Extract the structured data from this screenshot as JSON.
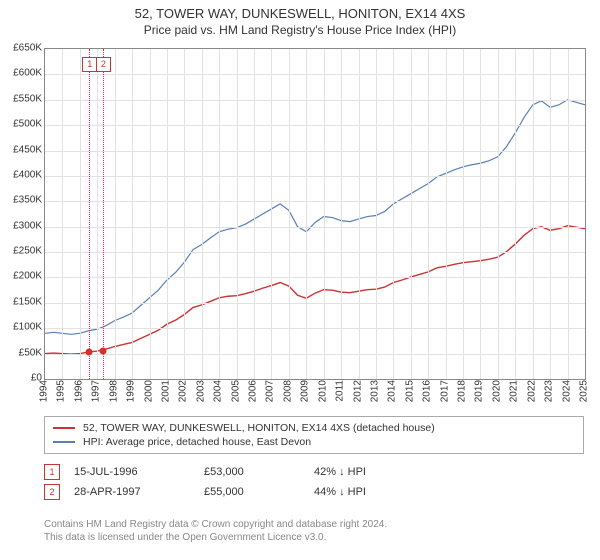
{
  "title": {
    "main": "52, TOWER WAY, DUNKESWELL, HONITON, EX14 4XS",
    "sub": "Price paid vs. HM Land Registry's House Price Index (HPI)"
  },
  "chart": {
    "type": "line",
    "ylim": [
      0,
      650000
    ],
    "ytick_step": 50000,
    "ytick_prefix": "£",
    "ytick_suffix": "K",
    "ytick_divisor": 1000,
    "xlim": [
      1994,
      2025
    ],
    "xtick_step": 1,
    "grid_color": "#e2e2e2",
    "background": "#ffffff",
    "series": [
      {
        "name": "HPI: Average price, detached house, East Devon",
        "color": "#5b7fb5",
        "width": 1.2,
        "points": [
          [
            1994,
            90000
          ],
          [
            1994.5,
            92000
          ],
          [
            1995,
            90000
          ],
          [
            1995.5,
            88000
          ],
          [
            1996,
            90000
          ],
          [
            1996.5,
            95000
          ],
          [
            1997,
            98000
          ],
          [
            1997.5,
            105000
          ],
          [
            1998,
            115000
          ],
          [
            1998.5,
            122000
          ],
          [
            1999,
            130000
          ],
          [
            1999.5,
            145000
          ],
          [
            2000,
            160000
          ],
          [
            2000.5,
            175000
          ],
          [
            2001,
            195000
          ],
          [
            2001.5,
            210000
          ],
          [
            2002,
            230000
          ],
          [
            2002.5,
            255000
          ],
          [
            2003,
            265000
          ],
          [
            2003.5,
            278000
          ],
          [
            2004,
            290000
          ],
          [
            2004.5,
            295000
          ],
          [
            2005,
            298000
          ],
          [
            2005.5,
            305000
          ],
          [
            2006,
            315000
          ],
          [
            2006.5,
            325000
          ],
          [
            2007,
            335000
          ],
          [
            2007.5,
            345000
          ],
          [
            2008,
            332000
          ],
          [
            2008.5,
            300000
          ],
          [
            2009,
            290000
          ],
          [
            2009.5,
            308000
          ],
          [
            2010,
            320000
          ],
          [
            2010.5,
            318000
          ],
          [
            2011,
            312000
          ],
          [
            2011.5,
            310000
          ],
          [
            2012,
            315000
          ],
          [
            2012.5,
            320000
          ],
          [
            2013,
            322000
          ],
          [
            2013.5,
            330000
          ],
          [
            2014,
            345000
          ],
          [
            2014.5,
            355000
          ],
          [
            2015,
            365000
          ],
          [
            2015.5,
            375000
          ],
          [
            2016,
            385000
          ],
          [
            2016.5,
            398000
          ],
          [
            2017,
            405000
          ],
          [
            2017.5,
            412000
          ],
          [
            2018,
            418000
          ],
          [
            2018.5,
            422000
          ],
          [
            2019,
            425000
          ],
          [
            2019.5,
            430000
          ],
          [
            2020,
            438000
          ],
          [
            2020.5,
            458000
          ],
          [
            2021,
            485000
          ],
          [
            2021.5,
            515000
          ],
          [
            2022,
            540000
          ],
          [
            2022.5,
            548000
          ],
          [
            2023,
            535000
          ],
          [
            2023.5,
            540000
          ],
          [
            2024,
            550000
          ],
          [
            2024.5,
            545000
          ],
          [
            2025,
            540000
          ]
        ]
      },
      {
        "name": "52, TOWER WAY, DUNKESWELL, HONITON, EX14 4XS (detached house)",
        "color": "#cc3333",
        "width": 1.4,
        "points": [
          [
            1994,
            50000
          ],
          [
            1994.5,
            51000
          ],
          [
            1995,
            50000
          ],
          [
            1995.5,
            49000
          ],
          [
            1996,
            50000
          ],
          [
            1996.5,
            53000
          ],
          [
            1997,
            55000
          ],
          [
            1997.5,
            59000
          ],
          [
            1998,
            64000
          ],
          [
            1998.5,
            68000
          ],
          [
            1999,
            72000
          ],
          [
            1999.5,
            80000
          ],
          [
            2000,
            88000
          ],
          [
            2000.5,
            96000
          ],
          [
            2001,
            108000
          ],
          [
            2001.5,
            116000
          ],
          [
            2002,
            127000
          ],
          [
            2002.5,
            141000
          ],
          [
            2003,
            146000
          ],
          [
            2003.5,
            153000
          ],
          [
            2004,
            160000
          ],
          [
            2004.5,
            163000
          ],
          [
            2005,
            164000
          ],
          [
            2005.5,
            168000
          ],
          [
            2006,
            173000
          ],
          [
            2006.5,
            179000
          ],
          [
            2007,
            184000
          ],
          [
            2007.5,
            190000
          ],
          [
            2008,
            183000
          ],
          [
            2008.5,
            165000
          ],
          [
            2009,
            159000
          ],
          [
            2009.5,
            169000
          ],
          [
            2010,
            176000
          ],
          [
            2010.5,
            175000
          ],
          [
            2011,
            171000
          ],
          [
            2011.5,
            170000
          ],
          [
            2012,
            173000
          ],
          [
            2012.5,
            176000
          ],
          [
            2013,
            177000
          ],
          [
            2013.5,
            181000
          ],
          [
            2014,
            190000
          ],
          [
            2014.5,
            195000
          ],
          [
            2015,
            201000
          ],
          [
            2015.5,
            206000
          ],
          [
            2016,
            211000
          ],
          [
            2016.5,
            219000
          ],
          [
            2017,
            222000
          ],
          [
            2017.5,
            226000
          ],
          [
            2018,
            229000
          ],
          [
            2018.5,
            231000
          ],
          [
            2019,
            233000
          ],
          [
            2019.5,
            236000
          ],
          [
            2020,
            240000
          ],
          [
            2020.5,
            251000
          ],
          [
            2021,
            266000
          ],
          [
            2021.5,
            283000
          ],
          [
            2022,
            296000
          ],
          [
            2022.5,
            300000
          ],
          [
            2023,
            293000
          ],
          [
            2023.5,
            296000
          ],
          [
            2024,
            302000
          ],
          [
            2024.5,
            299000
          ],
          [
            2025,
            296000
          ]
        ]
      }
    ],
    "markers": [
      {
        "idx": "1",
        "year": 1996.54,
        "value": 53000,
        "color": "#cc3333"
      },
      {
        "idx": "2",
        "year": 1997.32,
        "value": 55000,
        "color": "#cc3333"
      }
    ]
  },
  "legend": {
    "rows": [
      {
        "color": "#cc3333",
        "label": "52, TOWER WAY, DUNKESWELL, HONITON, EX14 4XS (detached house)"
      },
      {
        "color": "#5b7fb5",
        "label": "HPI: Average price, detached house, East Devon"
      }
    ]
  },
  "sales": [
    {
      "idx": "1",
      "color": "#cc3333",
      "date": "15-JUL-1996",
      "price": "£53,000",
      "delta": "42% ↓ HPI"
    },
    {
      "idx": "2",
      "color": "#cc3333",
      "date": "28-APR-1997",
      "price": "£55,000",
      "delta": "44% ↓ HPI"
    }
  ],
  "footer": {
    "line1": "Contains HM Land Registry data © Crown copyright and database right 2024.",
    "line2": "This data is licensed under the Open Government Licence v3.0."
  }
}
